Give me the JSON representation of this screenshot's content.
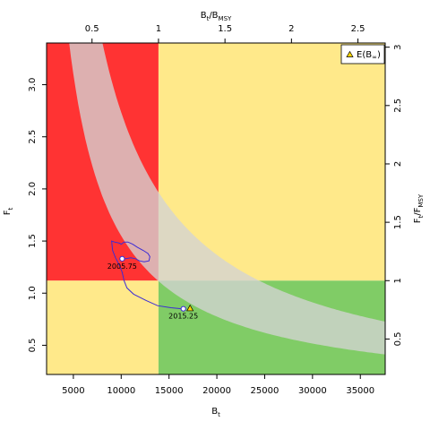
{
  "chart_data": {
    "type": "scatter",
    "title": "",
    "xlabel": "B",
    "xlabel_sub": "t",
    "ylabel": "F",
    "ylabel_sub": "t",
    "top_label": "B",
    "top_label_sub": "t",
    "top_label_sep": "/B",
    "top_label_sub2": "MSY",
    "right_label": "F",
    "right_label_sub": "t",
    "right_label_sep": "/F",
    "right_label_sub2": "MSY",
    "xlim": [
      2200,
      37600
    ],
    "ylim": [
      0.22,
      3.4
    ],
    "bmsy": 13900,
    "fmsy": 1.12,
    "x_ticks": [
      5000,
      10000,
      15000,
      20000,
      25000,
      30000,
      35000
    ],
    "x_tick_labels": [
      "5000",
      "10000",
      "15000",
      "20000",
      "25000",
      "30000",
      "35000"
    ],
    "y_ticks": [
      0.5,
      1.0,
      1.5,
      2.0,
      2.5,
      3.0
    ],
    "y_tick_labels": [
      "0.5",
      "1.0",
      "1.5",
      "2.0",
      "2.5",
      "3.0"
    ],
    "top_ticks": [
      0.5,
      1,
      1.5,
      2,
      2.5
    ],
    "top_tick_labels": [
      "0.5",
      "1",
      "1.5",
      "2",
      "2.5"
    ],
    "right_ticks": [
      0.5,
      1,
      1.5,
      2,
      2.5,
      3
    ],
    "right_tick_labels": [
      "0.5",
      "1",
      "1.5",
      "2",
      "2.5",
      "3"
    ],
    "quadrant_colors": {
      "top_left": "#ff3333",
      "top_right": "#ffe98a",
      "bottom_left": "#ffe98a",
      "bottom_right": "#80cc66",
      "band": "#d3d3d3"
    },
    "band": {
      "upper_k": 27350,
      "lower_k": 15500
    },
    "trajectory": {
      "color": "#3b2bd6",
      "points": [
        [
          16700,
          0.85
        ],
        [
          16400,
          0.85
        ],
        [
          15200,
          0.86
        ],
        [
          13800,
          0.88
        ],
        [
          12600,
          0.93
        ],
        [
          11300,
          0.99
        ],
        [
          10600,
          1.05
        ],
        [
          10300,
          1.12
        ],
        [
          10100,
          1.2
        ],
        [
          9800,
          1.27
        ],
        [
          9400,
          1.34
        ],
        [
          9100,
          1.41
        ],
        [
          9000,
          1.5
        ],
        [
          9300,
          1.49
        ],
        [
          9800,
          1.48
        ],
        [
          10000,
          1.47
        ],
        [
          10300,
          1.49
        ],
        [
          10700,
          1.49
        ],
        [
          11200,
          1.47
        ],
        [
          11700,
          1.44
        ],
        [
          12300,
          1.41
        ],
        [
          12800,
          1.38
        ],
        [
          13000,
          1.35
        ],
        [
          12900,
          1.31
        ],
        [
          12400,
          1.3
        ],
        [
          11900,
          1.31
        ],
        [
          11500,
          1.33
        ],
        [
          11000,
          1.34
        ],
        [
          10500,
          1.33
        ],
        [
          10100,
          1.33
        ]
      ]
    },
    "points": [
      {
        "label": "2005.75",
        "x": 10100,
        "y": 1.33
      },
      {
        "label": "2015.25",
        "x": 16500,
        "y": 0.85
      }
    ],
    "marker": {
      "x": 17200,
      "y": 0.855,
      "color": "#ffd700"
    },
    "legend": {
      "label": "E(B",
      "label_sub": "∞",
      "label_close": ")",
      "placement": "top-right"
    }
  }
}
